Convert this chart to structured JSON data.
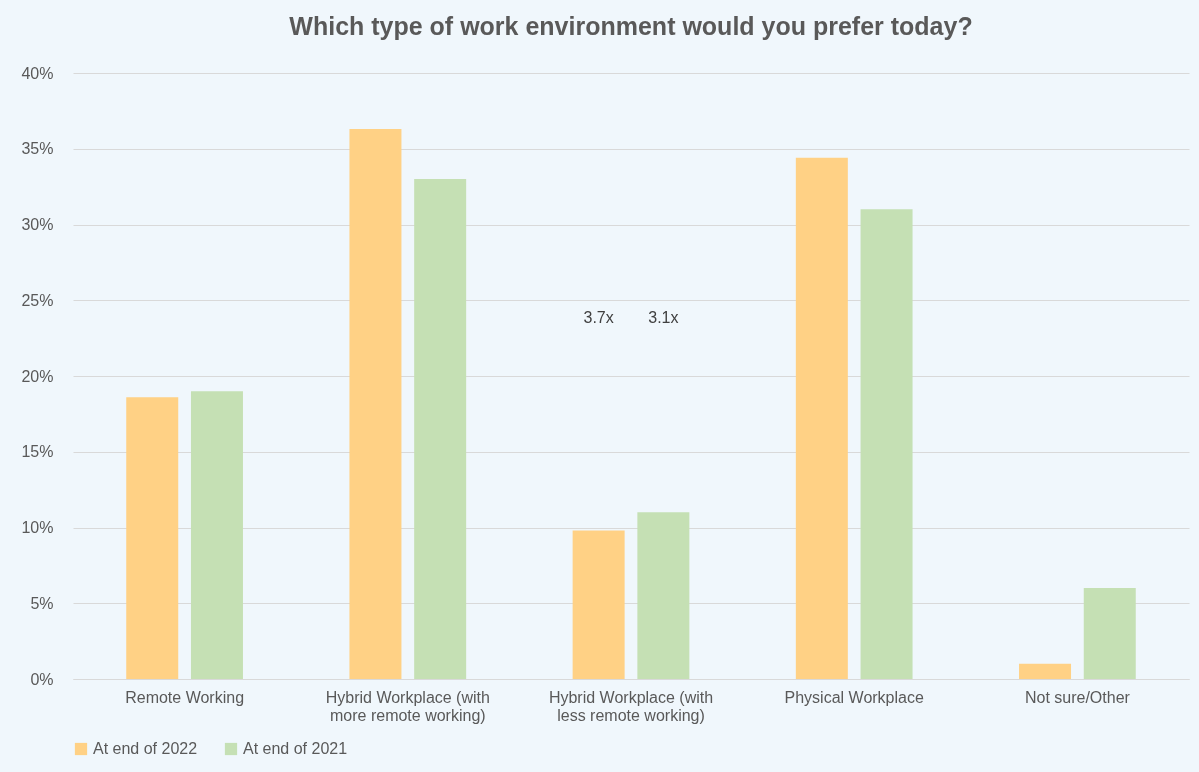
{
  "chart_data": {
    "type": "bar",
    "title": "Which type of work environment would you prefer today?",
    "categories": [
      "Remote Working",
      "Hybrid Workplace (with\nmore remote working)",
      "Hybrid Workplace (with\nless remote working)",
      "Physical Workplace",
      "Not sure/Other"
    ],
    "series": [
      {
        "name": "At end of 2022",
        "color": "#ffd185",
        "values": [
          18.6,
          36.3,
          9.8,
          34.4,
          1.0
        ]
      },
      {
        "name": "At end of 2021",
        "color": "#c5e0b4",
        "values": [
          19.0,
          33.0,
          11.0,
          31.0,
          6.0
        ]
      }
    ],
    "ylim": [
      0,
      40
    ],
    "yticks": [
      {
        "value": 0,
        "label": "0%"
      },
      {
        "value": 5,
        "label": "5%"
      },
      {
        "value": 10,
        "label": "10%"
      },
      {
        "value": 15,
        "label": "15%"
      },
      {
        "value": 20,
        "label": "20%"
      },
      {
        "value": 25,
        "label": "25%"
      },
      {
        "value": 30,
        "label": "30%"
      },
      {
        "value": 35,
        "label": "35%"
      },
      {
        "value": 40,
        "label": "40%"
      }
    ],
    "annotations": [
      "3.7x",
      "3.1x"
    ],
    "grid": "y",
    "legend": "bottom"
  }
}
